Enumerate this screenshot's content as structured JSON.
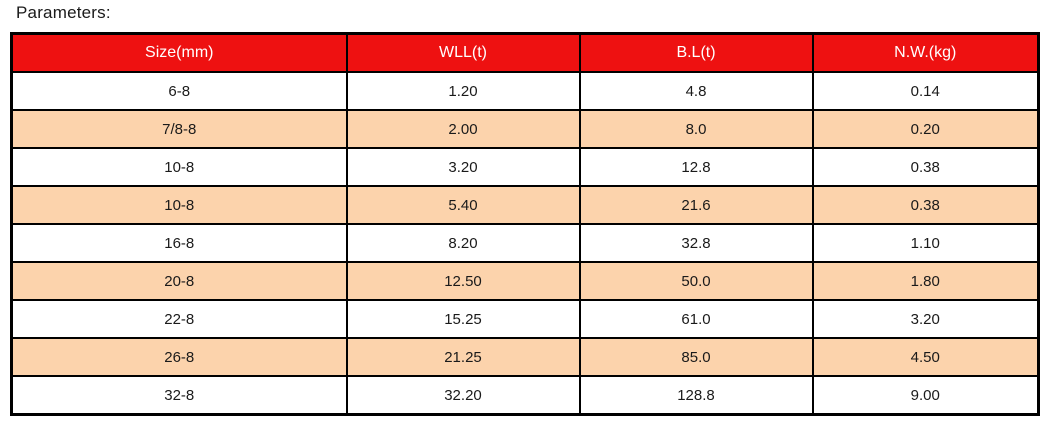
{
  "page": {
    "title": "Parameters:"
  },
  "colors": {
    "header_bg": "#ee1111",
    "header_text": "#ffffff",
    "row_bg": "#ffffff",
    "row_alt_bg": "#fcd3ac",
    "border": "#000000",
    "text": "#1a1a1a"
  },
  "chart_data": {
    "type": "table",
    "title": "Parameters:",
    "columns": [
      "Size(mm)",
      "WLL(t)",
      "B.L(t)",
      "N.W.(kg)"
    ],
    "rows": [
      [
        "6-8",
        "1.20",
        "4.8",
        "0.14"
      ],
      [
        "7/8-8",
        "2.00",
        "8.0",
        "0.20"
      ],
      [
        "10-8",
        "3.20",
        "12.8",
        "0.38"
      ],
      [
        "10-8",
        "5.40",
        "21.6",
        "0.38"
      ],
      [
        "16-8",
        "8.20",
        "32.8",
        "1.10"
      ],
      [
        "20-8",
        "12.50",
        "50.0",
        "1.80"
      ],
      [
        "22-8",
        "15.25",
        "61.0",
        "3.20"
      ],
      [
        "26-8",
        "21.25",
        "85.0",
        "4.50"
      ],
      [
        "32-8",
        "32.20",
        "128.8",
        "9.00"
      ]
    ],
    "layout": {
      "header_style": "red background, white text, centered",
      "stripes": "rows alternate white and peach starting with white",
      "borders": "solid black grid, thick outer border",
      "alignment": "all cells centered"
    }
  }
}
